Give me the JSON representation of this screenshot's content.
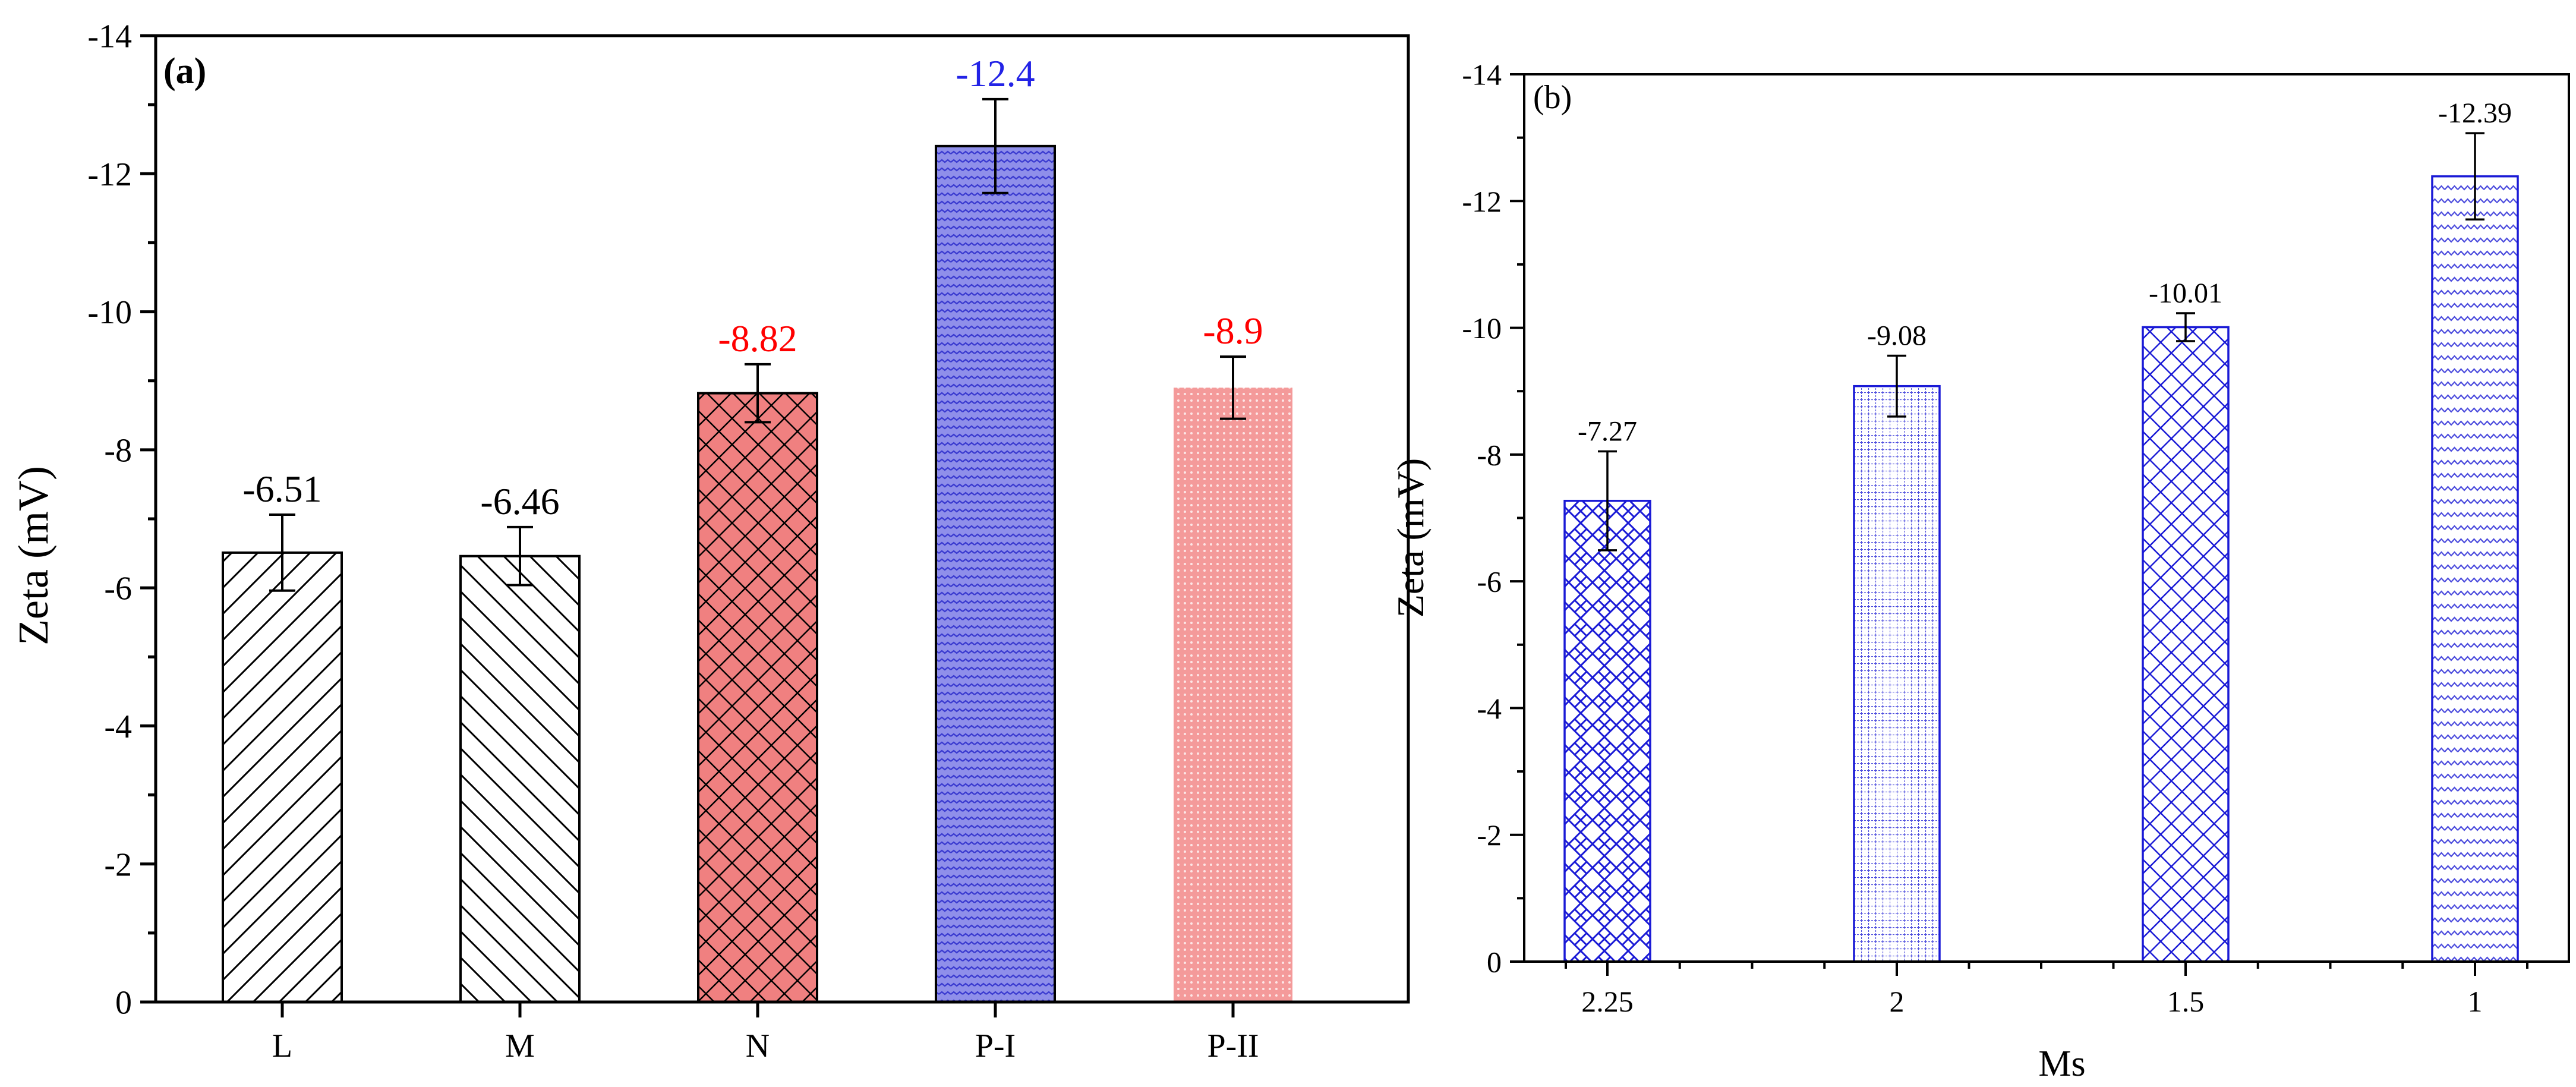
{
  "chart_data": [
    {
      "panel_label": "(a)",
      "type": "bar",
      "categories": [
        "L",
        "M",
        "N",
        "P-I",
        "P-II"
      ],
      "values": [
        -6.51,
        -6.46,
        -8.82,
        -12.4,
        -8.9
      ],
      "errors": [
        0.55,
        0.42,
        0.42,
        0.68,
        0.45
      ],
      "value_labels": [
        "-6.51",
        "-6.46",
        "-8.82",
        "-12.4",
        "-8.9"
      ],
      "label_colors": [
        "#000000",
        "#000000",
        "#ff0000",
        "#2323e6",
        "#ff0000"
      ],
      "fills": [
        "#ffffff",
        "#ffffff",
        "#f08080",
        "#8f8fea",
        "#f49a9a"
      ],
      "patterns": [
        "diag-right",
        "diag-left",
        "crosshatch",
        "wave",
        "dots"
      ],
      "title": "",
      "xlabel": "",
      "ylabel": "Zeta (mV)",
      "ylim": [
        0,
        -14
      ],
      "yticks": [
        "0",
        "-2",
        "-4",
        "-6",
        "-8",
        "-10",
        "-12",
        "-14"
      ],
      "ytick_values": [
        0,
        -2,
        -4,
        -6,
        -8,
        -10,
        -12,
        -14
      ]
    },
    {
      "panel_label": "(b)",
      "type": "bar",
      "categories": [
        "2.25",
        "2",
        "1.5",
        "1"
      ],
      "values": [
        -7.27,
        -9.08,
        -10.01,
        -12.39
      ],
      "errors": [
        0.78,
        0.48,
        0.22,
        0.68
      ],
      "value_labels": [
        "-7.27",
        "-9.08",
        "-10.01",
        "-12.39"
      ],
      "patterns": [
        "basket",
        "grid",
        "crosshatch",
        "wave"
      ],
      "color": "#1a1ad6",
      "title": "",
      "xlabel": "Ms",
      "ylabel": "Zeta (mV)",
      "ylim": [
        0,
        -14
      ],
      "yticks": [
        "0",
        "-2",
        "-4",
        "-6",
        "-8",
        "-10",
        "-12",
        "-14"
      ],
      "ytick_values": [
        0,
        -2,
        -4,
        -6,
        -8,
        -10,
        -12,
        -14
      ]
    }
  ]
}
